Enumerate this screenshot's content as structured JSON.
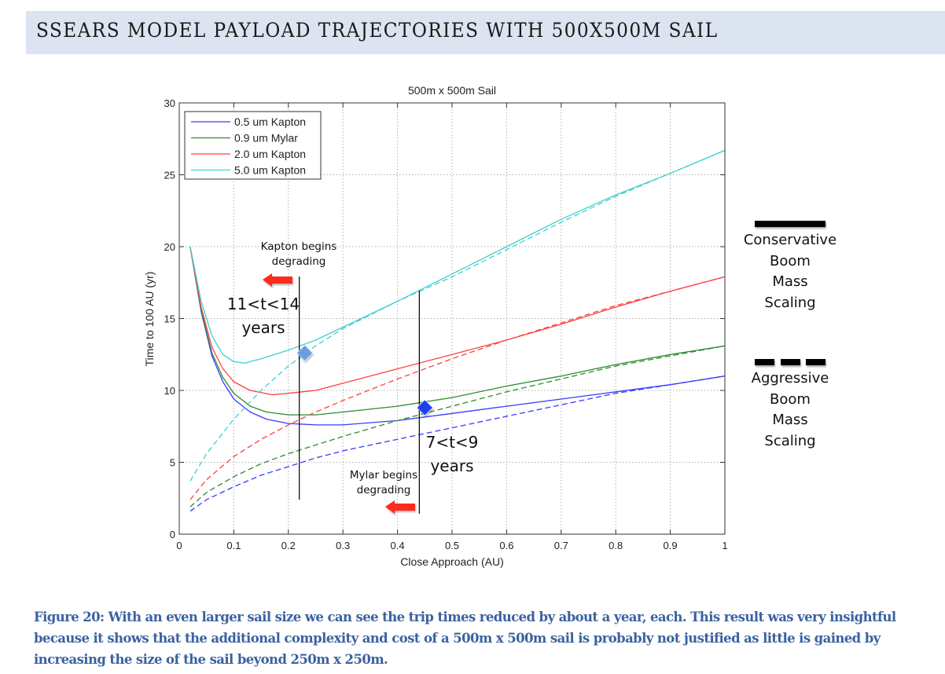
{
  "header": {
    "title": "SSEARS MODEL PAYLOAD TRAJECTORIES WITH 500X500M SAIL"
  },
  "chart_data": {
    "type": "line",
    "title": "500m x 500m Sail",
    "xlabel": "Close Approach (AU)",
    "ylabel": "Time to 100 AU (yr)",
    "xlim": [
      0,
      1
    ],
    "ylim": [
      0,
      30
    ],
    "xticks": [
      "0",
      "0.1",
      "0.2",
      "0.3",
      "0.4",
      "0.5",
      "0.6",
      "0.7",
      "0.8",
      "0.9",
      "1"
    ],
    "yticks": [
      "0",
      "5",
      "10",
      "15",
      "20",
      "25",
      "30"
    ],
    "grid": true,
    "legend_position": "upper left",
    "legend": [
      "0.5 um Kapton",
      "0.9 um Mylar",
      "2.0 um Kapton",
      "5.0 um Kapton"
    ],
    "line_styles": {
      "solid": "Conservative Boom Mass Scaling",
      "dashed": "Aggressive Boom Mass Scaling"
    },
    "series": [
      {
        "name": "0.5 um Kapton",
        "color": "#3a3aff",
        "style": "solid",
        "x": [
          0.02,
          0.04,
          0.06,
          0.08,
          0.1,
          0.13,
          0.16,
          0.2,
          0.25,
          0.3,
          0.4,
          0.5,
          0.6,
          0.7,
          0.8,
          0.9,
          1.0
        ],
        "y": [
          20.0,
          15.5,
          12.4,
          10.6,
          9.4,
          8.5,
          8.0,
          7.7,
          7.6,
          7.6,
          7.9,
          8.4,
          8.9,
          9.4,
          9.9,
          10.4,
          11.0
        ]
      },
      {
        "name": "0.5 um Kapton",
        "color": "#3a3aff",
        "style": "dashed",
        "x": [
          0.02,
          0.05,
          0.1,
          0.15,
          0.2,
          0.25,
          0.3,
          0.4,
          0.5,
          0.6,
          0.7,
          0.8,
          0.9,
          1.0
        ],
        "y": [
          1.6,
          2.4,
          3.3,
          4.1,
          4.7,
          5.3,
          5.8,
          6.6,
          7.4,
          8.2,
          9.0,
          9.8,
          10.4,
          11.0
        ]
      },
      {
        "name": "0.9 um Mylar",
        "color": "#2e8b2e",
        "style": "solid",
        "x": [
          0.02,
          0.04,
          0.06,
          0.08,
          0.1,
          0.13,
          0.16,
          0.2,
          0.25,
          0.3,
          0.4,
          0.5,
          0.6,
          0.7,
          0.8,
          0.9,
          1.0
        ],
        "y": [
          20.0,
          15.6,
          12.6,
          10.9,
          9.8,
          8.9,
          8.5,
          8.3,
          8.3,
          8.5,
          8.9,
          9.5,
          10.3,
          11.0,
          11.8,
          12.5,
          13.1
        ]
      },
      {
        "name": "0.9 um Mylar",
        "color": "#2e8b2e",
        "style": "dashed",
        "x": [
          0.02,
          0.05,
          0.1,
          0.15,
          0.2,
          0.25,
          0.3,
          0.4,
          0.5,
          0.6,
          0.7,
          0.8,
          0.9,
          1.0
        ],
        "y": [
          1.9,
          2.9,
          4.0,
          4.9,
          5.6,
          6.2,
          6.8,
          7.9,
          8.9,
          9.9,
          10.8,
          11.7,
          12.4,
          13.1
        ]
      },
      {
        "name": "2.0 um Kapton",
        "color": "#ff4040",
        "style": "solid",
        "x": [
          0.02,
          0.04,
          0.06,
          0.08,
          0.1,
          0.13,
          0.17,
          0.2,
          0.25,
          0.3,
          0.4,
          0.5,
          0.6,
          0.7,
          0.8,
          0.9,
          1.0
        ],
        "y": [
          20.0,
          15.8,
          13.0,
          11.5,
          10.6,
          10.0,
          9.7,
          9.8,
          10.0,
          10.5,
          11.5,
          12.5,
          13.5,
          14.6,
          15.8,
          16.9,
          17.9
        ]
      },
      {
        "name": "2.0 um Kapton",
        "color": "#ff4040",
        "style": "dashed",
        "x": [
          0.02,
          0.05,
          0.1,
          0.15,
          0.2,
          0.25,
          0.3,
          0.4,
          0.5,
          0.6,
          0.7,
          0.8,
          0.9,
          1.0
        ],
        "y": [
          2.4,
          3.8,
          5.4,
          6.6,
          7.6,
          8.5,
          9.3,
          10.8,
          12.2,
          13.5,
          14.7,
          15.9,
          16.9,
          17.9
        ]
      },
      {
        "name": "5.0 um Kapton",
        "color": "#40d0d0",
        "style": "solid",
        "x": [
          0.02,
          0.04,
          0.06,
          0.08,
          0.1,
          0.12,
          0.15,
          0.2,
          0.25,
          0.3,
          0.4,
          0.5,
          0.6,
          0.7,
          0.8,
          0.9,
          1.0
        ],
        "y": [
          20.0,
          16.2,
          13.8,
          12.5,
          12.0,
          11.9,
          12.2,
          12.8,
          13.5,
          14.4,
          16.2,
          18.1,
          20.0,
          21.9,
          23.6,
          25.1,
          26.7
        ]
      },
      {
        "name": "5.0 um Kapton",
        "color": "#40d0d0",
        "style": "dashed",
        "x": [
          0.02,
          0.05,
          0.1,
          0.15,
          0.2,
          0.25,
          0.3,
          0.4,
          0.5,
          0.6,
          0.7,
          0.8,
          0.9,
          1.0
        ],
        "y": [
          3.7,
          5.6,
          8.0,
          10.0,
          11.7,
          13.1,
          14.3,
          16.2,
          17.9,
          19.8,
          21.7,
          23.5,
          25.1,
          26.7
        ]
      }
    ],
    "annotations": [
      {
        "text": "Kapton begins degrading",
        "x_line": 0.22,
        "arrow": "left"
      },
      {
        "text": "11<t<14 years"
      },
      {
        "text": "Mylar begins degrading",
        "x_line": 0.44,
        "arrow": "left"
      },
      {
        "text": "7<t<9 years"
      }
    ],
    "markers": [
      {
        "shape": "diamond",
        "color": "#6a9ee0",
        "x": 0.23,
        "y": 12.6
      },
      {
        "shape": "diamond",
        "color": "#1f3ff0",
        "x": 0.45,
        "y": 8.8
      }
    ]
  },
  "annotations": {
    "kapton_line1": "Kapton begins",
    "kapton_line2": "degrading",
    "kapton_range_line1": "11<t<14",
    "kapton_range_line2": "years",
    "mylar_line1": "Mylar begins",
    "mylar_line2": "degrading",
    "mylar_range_line1": "7<t<9",
    "mylar_range_line2": "years"
  },
  "side_legend": {
    "conservative": [
      "Conservative",
      "Boom",
      "Mass",
      "Scaling"
    ],
    "aggressive": [
      "Aggressive",
      "Boom",
      "Mass",
      "Scaling"
    ]
  },
  "caption": "Figure 20: With an even larger sail size we can see the trip times reduced by about a year, each. This result was very insightful because it shows that the additional complexity and cost of a 500m x 500m sail is probably not justified as little is gained by increasing the size of the sail beyond 250m x 250m."
}
